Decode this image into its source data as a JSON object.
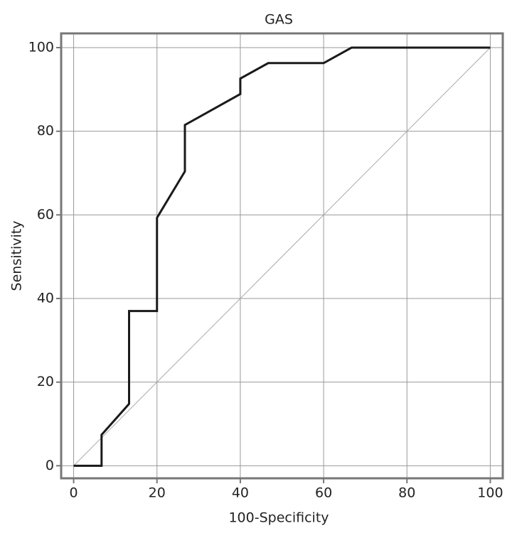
{
  "chart_data": {
    "type": "line",
    "title": "GAS",
    "x_label": "100-Specificity",
    "y_label": "Sensitivity",
    "series": [
      {
        "color": "#1a1a1a",
        "x": [
          0,
          6.7,
          6.7,
          13.3,
          13.3,
          20,
          20,
          26.7,
          26.7,
          40,
          40,
          46.7,
          60,
          66.7,
          100
        ],
        "values": [
          0,
          0,
          7.4,
          14.8,
          37,
          37,
          59.3,
          70.4,
          81.5,
          88.9,
          92.6,
          96.3,
          96.3,
          100,
          100
        ]
      },
      {
        "color": "#aaaaaa",
        "x": [
          0,
          100
        ],
        "values": [
          0,
          100
        ]
      }
    ],
    "xlim": [
      -3,
      103
    ],
    "ylim": [
      -3,
      103.4
    ],
    "xticks": [
      0,
      20,
      40,
      60,
      80,
      100
    ],
    "yticks": [
      0,
      20,
      40,
      60,
      80,
      100
    ],
    "grid": true
  }
}
